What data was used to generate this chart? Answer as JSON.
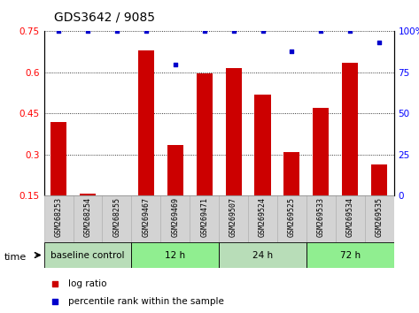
{
  "title": "GDS3642 / 9085",
  "samples": [
    "GSM268253",
    "GSM268254",
    "GSM268255",
    "GSM269467",
    "GSM269469",
    "GSM269471",
    "GSM269507",
    "GSM269524",
    "GSM269525",
    "GSM269533",
    "GSM269534",
    "GSM269535"
  ],
  "log_ratio": [
    0.42,
    0.157,
    0.152,
    0.68,
    0.335,
    0.595,
    0.615,
    0.52,
    0.31,
    0.47,
    0.635,
    0.265
  ],
  "percentile_rank": [
    100,
    100,
    100,
    100,
    80,
    100,
    100,
    100,
    88,
    100,
    100,
    93
  ],
  "ymin": 0.15,
  "ymax": 0.75,
  "yticks": [
    0.15,
    0.3,
    0.45,
    0.6,
    0.75
  ],
  "right_yticks": [
    0,
    25,
    50,
    75,
    100
  ],
  "bar_color": "#CC0000",
  "dot_color": "#0000CC",
  "bar_baseline": 0.15,
  "sample_bg_color": "#d3d3d3",
  "group_defs": [
    {
      "label": "baseline control",
      "start": 0,
      "end": 3
    },
    {
      "label": "12 h",
      "start": 3,
      "end": 6
    },
    {
      "label": "24 h",
      "start": 6,
      "end": 9
    },
    {
      "label": "72 h",
      "start": 9,
      "end": 12
    }
  ],
  "green_colors": [
    "#b8ddb8",
    "#90EE90",
    "#b8ddb8",
    "#90EE90"
  ]
}
